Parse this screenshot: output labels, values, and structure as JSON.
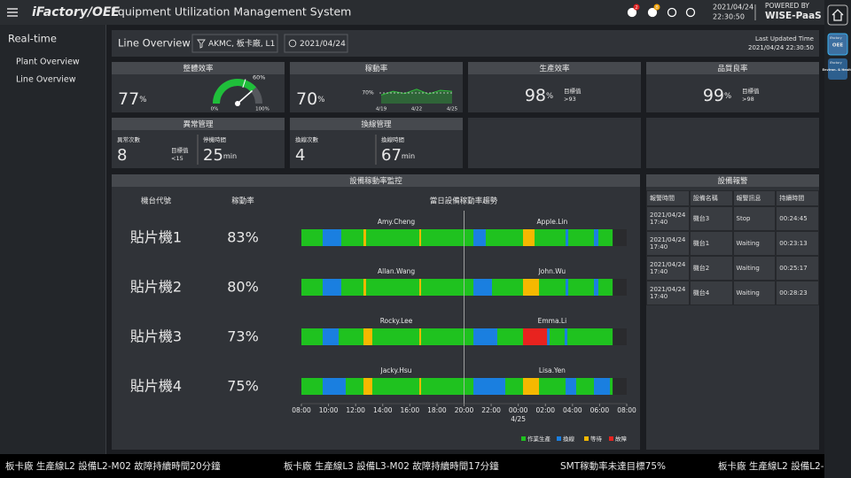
{
  "header": {
    "logo": "iFactory/OEE",
    "title": "Equipment Utilization Management System",
    "badges": [
      "2",
      "8"
    ],
    "date": "2021/04/24",
    "time": "22:30:50",
    "powered_by": "POWERED BY",
    "brand": "WISE-PaaS"
  },
  "sidebar": {
    "section": "Real-time",
    "items": [
      "Plant Overview",
      "Line Overview"
    ],
    "active": 1
  },
  "rail": {
    "apps": [
      {
        "brand": "iFactory",
        "name": "OEE"
      },
      {
        "brand": "iFactory",
        "name": "Environ. & Health"
      }
    ]
  },
  "toolbar": {
    "title": "Line Overview",
    "filter": "AKMC, 板卡廠, L1",
    "date": "2021/04/24",
    "updated_label": "Last Updated Time",
    "updated": "2021/04/24 22:30:50"
  },
  "kpis": [
    {
      "title": "整體效率",
      "value": 77,
      "unit": "%",
      "gauge": {
        "range": [
          {
            "value": 0,
            "label": "0%"
          },
          {
            "value": 100,
            "label": "100%"
          }
        ],
        "target": {
          "value": 60,
          "label": "60%"
        },
        "color": "#1fbf3a"
      }
    },
    {
      "title": "稼動率",
      "value": 70,
      "unit": "%",
      "trend": {
        "type": "area",
        "categories": [
          "4/19",
          null,
          null,
          "4/22",
          null,
          null,
          "4/25"
        ],
        "values": [
          66,
          73,
          69,
          77,
          68,
          75,
          73
        ],
        "ylim": [
          50,
          90
        ],
        "target": {
          "value": 70,
          "label": "70%"
        },
        "color": "#2fbf3a"
      }
    },
    {
      "title": "生產效率",
      "value": 98,
      "unit": "%",
      "target_label": "目標值",
      "target": ">93"
    },
    {
      "title": "品質良率",
      "value": 99,
      "unit": "%",
      "target_label": "目標值",
      "target": ">98"
    }
  ],
  "management": [
    {
      "title": "異常管理",
      "items": [
        {
          "label": "異常次數",
          "value": 8
        },
        {
          "label": "停機時間",
          "value": 25,
          "unit": "min"
        }
      ],
      "target_label": "目標值",
      "target": "<15"
    },
    {
      "title": "換線管理",
      "items": [
        {
          "label": "換線次數",
          "value": 4
        },
        {
          "label": "換線時間",
          "value": 67,
          "unit": "min"
        }
      ]
    }
  ],
  "monitor": {
    "title": "設備稼動率監控",
    "columns": [
      "機台代號",
      "稼動率",
      "當日設備稼動率趨勢"
    ],
    "xlim": [
      8,
      32
    ],
    "xticks": [
      {
        "value": 8,
        "label": "08:00"
      },
      {
        "value": 10,
        "label": "10:00"
      },
      {
        "value": 12,
        "label": "12:00"
      },
      {
        "value": 14,
        "label": "14:00"
      },
      {
        "value": 16,
        "label": "16:00"
      },
      {
        "value": 18,
        "label": "18:00"
      },
      {
        "value": 20,
        "label": "20:00"
      },
      {
        "value": 22,
        "label": "22:00"
      },
      {
        "value": 24,
        "label": "00:00"
      },
      {
        "value": 26,
        "label": "02:00"
      },
      {
        "value": 28,
        "label": "04:00"
      },
      {
        "value": 30,
        "label": "06:00"
      },
      {
        "value": 32,
        "label": "08:00"
      }
    ],
    "date_marker": {
      "value": 24,
      "label": "4/25"
    },
    "now": 20,
    "legend": [
      {
        "name": "作業生產",
        "color": "#1fc21f"
      },
      {
        "name": "換線",
        "color": "#1a7fe0"
      },
      {
        "name": "等待",
        "color": "#f5b800"
      },
      {
        "name": "故障",
        "color": "#e8231f"
      }
    ],
    "rows": [
      {
        "machine": "貼片機1",
        "rate": "83%",
        "operators": [
          "Amy.Cheng",
          "Apple.Lin"
        ],
        "states": [
          [
            [
              8,
              30.96
            ]
          ],
          [
            [
              9.57,
              10.94
            ],
            [
              20.69,
              21.6
            ],
            [
              27.49,
              27.69
            ],
            [
              29.58,
              29.91
            ]
          ],
          [
            [
              12.58,
              12.77
            ],
            [
              16.7,
              16.83
            ],
            [
              24.35,
              25.2
            ]
          ],
          []
        ]
      },
      {
        "machine": "貼片機2",
        "rate": "80%",
        "operators": [
          "Allan.Wang",
          "John.Wu"
        ],
        "states": [
          [
            [
              8,
              30.96
            ]
          ],
          [
            [
              9.57,
              10.94
            ],
            [
              20.69,
              22.06
            ],
            [
              27.49,
              27.69
            ],
            [
              29.58,
              29.91
            ]
          ],
          [
            [
              12.58,
              12.77
            ],
            [
              16.7,
              16.83
            ],
            [
              24.35,
              25.53
            ]
          ],
          []
        ]
      },
      {
        "machine": "貼片機3",
        "rate": "73%",
        "operators": [
          "Rocky.Lee",
          "Emma.Li"
        ],
        "states": [
          [
            [
              8,
              30.96
            ]
          ],
          [
            [
              9.57,
              10.75
            ],
            [
              20.69,
              22.45
            ],
            [
              26.12,
              26.31
            ],
            [
              27.42,
              27.62
            ]
          ],
          [
            [
              12.58,
              13.23
            ],
            [
              16.7,
              16.83
            ]
          ],
          [
            [
              24.35,
              26.12
            ]
          ]
        ]
      },
      {
        "machine": "貼片機4",
        "rate": "75%",
        "operators": [
          "Jacky.Hsu",
          "Lisa.Yen"
        ],
        "states": [
          [
            [
              8,
              30.96
            ]
          ],
          [
            [
              9.57,
              11.27
            ],
            [
              20.69,
              23.04
            ],
            [
              27.49,
              28.27
            ],
            [
              29.58,
              30.76
            ]
          ],
          [
            [
              12.58,
              13.23
            ],
            [
              16.7,
              16.83
            ],
            [
              24.35,
              25.53
            ]
          ],
          []
        ]
      }
    ]
  },
  "alarms": {
    "title": "設備報警",
    "columns": [
      "報警時間",
      "設備名稱",
      "報警訊息",
      "持續時間"
    ],
    "rows": [
      [
        "2021/04/24 17:40",
        "機台3",
        "Stop",
        "00:24:45"
      ],
      [
        "2021/04/24 17:40",
        "機台1",
        "Waiting",
        "00:23:13"
      ],
      [
        "2021/04/24 17:40",
        "機台2",
        "Waiting",
        "00:25:17"
      ],
      [
        "2021/04/24 17:40",
        "機台4",
        "Waiting",
        "00:28:23"
      ]
    ]
  },
  "ticker": [
    "板卡廠 生產線L2 設備L2-M02 故障持續時間20分鐘",
    "板卡廠 生產線L3 設備L3-M02 故障持續時間17分鐘",
    "SMT稼動率未達目標75%"
  ]
}
